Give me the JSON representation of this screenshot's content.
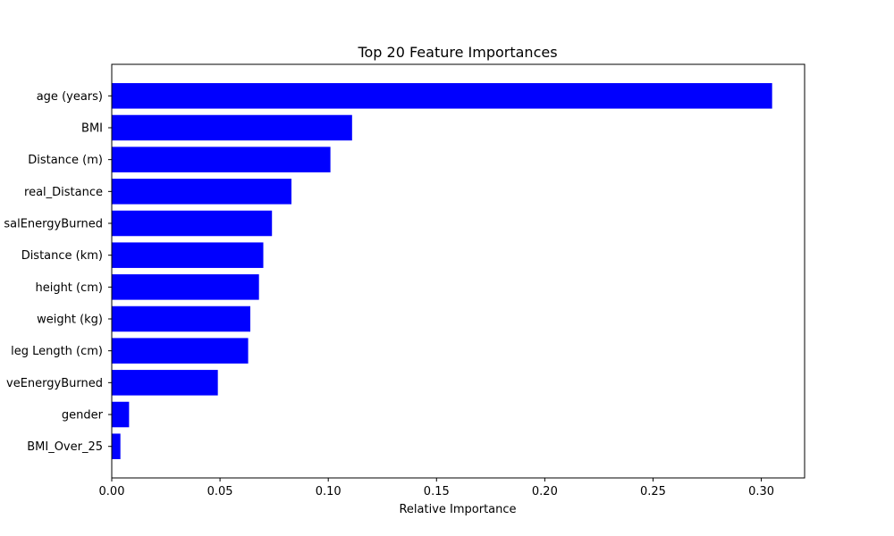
{
  "chart_data": {
    "type": "bar",
    "orientation": "horizontal",
    "title": "Top 20 Feature Importances",
    "xlabel": "Relative Importance",
    "ylabel": "",
    "categories": [
      "age (years)",
      "BMI",
      "Distance (m)",
      "real_Distance",
      "salEnergyBurned",
      "Distance (km)",
      "height (cm)",
      "weight (kg)",
      "leg Length (cm)",
      "veEnergyBurned",
      "gender",
      "BMI_Over_25"
    ],
    "values": [
      0.305,
      0.111,
      0.101,
      0.083,
      0.074,
      0.07,
      0.068,
      0.064,
      0.063,
      0.049,
      0.008,
      0.004
    ],
    "xlim": [
      0,
      0.32
    ],
    "xticks": [
      0.0,
      0.05,
      0.1,
      0.15,
      0.2,
      0.25,
      0.3
    ],
    "xtick_labels": [
      "0.00",
      "0.05",
      "0.10",
      "0.15",
      "0.20",
      "0.25",
      "0.30"
    ],
    "bar_color": "#0000ff",
    "grid": false,
    "legend": "none"
  }
}
